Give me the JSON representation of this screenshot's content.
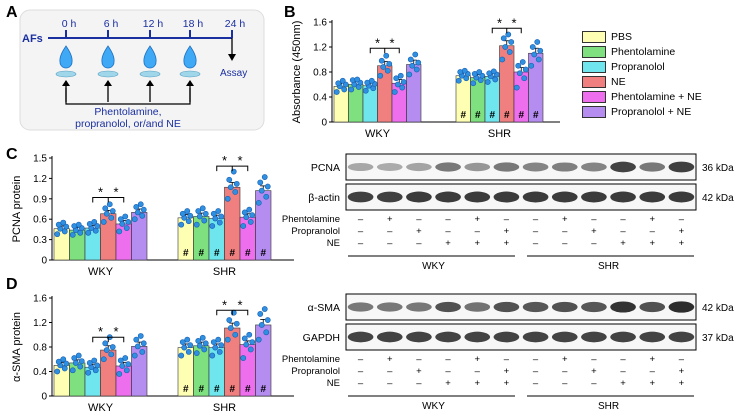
{
  "panels": {
    "a": "A",
    "b": "B",
    "c": "C",
    "d": "D"
  },
  "schematic": {
    "label": "AFs",
    "times": [
      "0 h",
      "6 h",
      "12 h",
      "18 h",
      "24 h"
    ],
    "assay": "Assay",
    "treatment_line1": "Phentolamine,",
    "treatment_line2": "propranolol, or/and NE"
  },
  "colors": {
    "PBS": "#ffffb3",
    "Phentolamine": "#7ee07e",
    "Propranolol": "#6fe6ee",
    "NE": "#f08080",
    "Phentolamine + NE": "#ee6fee",
    "Propranolol + NE": "#b58cf0",
    "dot": "#2f8fe0",
    "dot_stroke": "#1a5fb0"
  },
  "legend": [
    "PBS",
    "Phentolamine",
    "Propranolol",
    "NE",
    "Phentolamine + NE",
    "Propranolol + NE"
  ],
  "chart_data": [
    {
      "id": "B",
      "type": "bar",
      "ylabel": "Absorbance (450nm)",
      "ylim": [
        0,
        1.6
      ],
      "yticks": [
        "0",
        "0.4",
        "0.8",
        "1.2",
        "1.6"
      ],
      "groups": [
        "WKY",
        "SHR"
      ],
      "series": [
        {
          "name": "PBS",
          "values": [
            0.57,
            0.74
          ]
        },
        {
          "name": "Phentolamine",
          "values": [
            0.6,
            0.71
          ]
        },
        {
          "name": "Propranolol",
          "values": [
            0.58,
            0.73
          ]
        },
        {
          "name": "NE",
          "values": [
            0.9,
            1.22
          ]
        },
        {
          "name": "Phentolamine + NE",
          "values": [
            0.62,
            0.8
          ]
        },
        {
          "name": "Propranolol + NE",
          "values": [
            0.92,
            1.1
          ]
        }
      ],
      "errors": [
        [
          0.05,
          0.05
        ],
        [
          0.05,
          0.05
        ],
        [
          0.04,
          0.05
        ],
        [
          0.07,
          0.08
        ],
        [
          0.06,
          0.07
        ],
        [
          0.07,
          0.08
        ]
      ],
      "points": [
        [
          [
            0.48,
            0.52,
            0.57,
            0.6,
            0.62,
            0.66
          ],
          [
            0.66,
            0.7,
            0.74,
            0.77,
            0.8,
            0.82
          ]
        ],
        [
          [
            0.52,
            0.56,
            0.6,
            0.63,
            0.67,
            0.68
          ],
          [
            0.62,
            0.67,
            0.71,
            0.74,
            0.77,
            0.8
          ]
        ],
        [
          [
            0.5,
            0.54,
            0.58,
            0.61,
            0.63,
            0.66
          ],
          [
            0.64,
            0.68,
            0.73,
            0.76,
            0.78,
            0.81
          ]
        ],
        [
          [
            0.74,
            0.82,
            0.88,
            0.93,
            0.98,
            1.06
          ],
          [
            1.0,
            1.12,
            1.2,
            1.28,
            1.34,
            1.4
          ]
        ],
        [
          [
            0.48,
            0.55,
            0.6,
            0.64,
            0.7,
            0.74
          ],
          [
            0.55,
            0.7,
            0.78,
            0.84,
            0.9,
            0.96
          ]
        ],
        [
          [
            0.76,
            0.84,
            0.9,
            0.95,
            1.0,
            1.08
          ],
          [
            0.9,
            1.0,
            1.08,
            1.14,
            1.2,
            1.28
          ]
        ]
      ],
      "hash": [
        [
          false,
          true
        ],
        [
          false,
          true
        ],
        [
          false,
          true
        ],
        [
          false,
          true
        ],
        [
          false,
          true
        ],
        [
          false,
          true
        ]
      ],
      "significance": [
        {
          "group": 0,
          "from": 3,
          "to": 4,
          "label": "* *",
          "y": 1.18
        },
        {
          "group": 1,
          "from": 3,
          "to": 4,
          "label": "* *",
          "y": 1.5
        }
      ],
      "hash_label": "#"
    },
    {
      "id": "C",
      "type": "bar",
      "ylabel": "PCNA protein",
      "ylim": [
        0,
        1.5
      ],
      "yticks": [
        "0",
        "0.3",
        "0.6",
        "0.9",
        "1.2",
        "1.5"
      ],
      "groups": [
        "WKY",
        "SHR"
      ],
      "series": [
        {
          "name": "PBS",
          "values": [
            0.46,
            0.62
          ]
        },
        {
          "name": "Phentolamine",
          "values": [
            0.44,
            0.64
          ]
        },
        {
          "name": "Propranolol",
          "values": [
            0.47,
            0.61
          ]
        },
        {
          "name": "NE",
          "values": [
            0.68,
            1.07
          ]
        },
        {
          "name": "Phentolamine + NE",
          "values": [
            0.53,
            0.63
          ]
        },
        {
          "name": "Propranolol + NE",
          "values": [
            0.7,
            1.02
          ]
        }
      ],
      "errors": [
        [
          0.04,
          0.05
        ],
        [
          0.04,
          0.05
        ],
        [
          0.04,
          0.05
        ],
        [
          0.05,
          0.07
        ],
        [
          0.05,
          0.05
        ],
        [
          0.05,
          0.07
        ]
      ],
      "points": [
        [
          [
            0.38,
            0.42,
            0.46,
            0.49,
            0.52,
            0.55
          ],
          [
            0.52,
            0.57,
            0.62,
            0.65,
            0.68,
            0.72
          ]
        ],
        [
          [
            0.37,
            0.4,
            0.44,
            0.47,
            0.5,
            0.52
          ],
          [
            0.52,
            0.58,
            0.64,
            0.68,
            0.72,
            0.76
          ]
        ],
        [
          [
            0.4,
            0.43,
            0.47,
            0.5,
            0.53,
            0.56
          ],
          [
            0.5,
            0.55,
            0.61,
            0.64,
            0.68,
            0.72
          ]
        ],
        [
          [
            0.56,
            0.62,
            0.68,
            0.72,
            0.76,
            0.82
          ],
          [
            0.9,
            1.0,
            1.07,
            1.12,
            1.18,
            1.3
          ]
        ],
        [
          [
            0.42,
            0.47,
            0.53,
            0.56,
            0.6,
            0.64
          ],
          [
            0.5,
            0.56,
            0.63,
            0.66,
            0.7,
            0.74
          ]
        ],
        [
          [
            0.6,
            0.65,
            0.7,
            0.74,
            0.78,
            0.82
          ],
          [
            0.84,
            0.93,
            1.02,
            1.08,
            1.14,
            1.22
          ]
        ]
      ],
      "hash": [
        [
          false,
          true
        ],
        [
          false,
          true
        ],
        [
          false,
          true
        ],
        [
          false,
          true
        ],
        [
          false,
          true
        ],
        [
          false,
          true
        ]
      ],
      "significance": [
        {
          "group": 0,
          "from": 3,
          "to": 4,
          "label": "* *",
          "y": 0.92
        },
        {
          "group": 1,
          "from": 3,
          "to": 4,
          "label": "* *",
          "y": 1.38
        }
      ],
      "hash_label": "#"
    },
    {
      "id": "D",
      "type": "bar",
      "ylabel": "α-SMA protein",
      "ylim": [
        0,
        1.6
      ],
      "yticks": [
        "0",
        "0.4",
        "0.8",
        "1.2",
        "1.6"
      ],
      "groups": [
        "WKY",
        "SHR"
      ],
      "series": [
        {
          "name": "PBS",
          "values": [
            0.5,
            0.79
          ]
        },
        {
          "name": "Phentolamine",
          "values": [
            0.54,
            0.82
          ]
        },
        {
          "name": "Propranolol",
          "values": [
            0.47,
            0.79
          ]
        },
        {
          "name": "NE",
          "values": [
            0.75,
            1.11
          ]
        },
        {
          "name": "Phentolamine + NE",
          "values": [
            0.49,
            0.84
          ]
        },
        {
          "name": "Propranolol + NE",
          "values": [
            0.81,
            1.16
          ]
        }
      ],
      "errors": [
        [
          0.05,
          0.06
        ],
        [
          0.05,
          0.06
        ],
        [
          0.05,
          0.06
        ],
        [
          0.07,
          0.08
        ],
        [
          0.06,
          0.06
        ],
        [
          0.07,
          0.09
        ]
      ],
      "points": [
        [
          [
            0.4,
            0.45,
            0.5,
            0.53,
            0.56,
            0.6
          ],
          [
            0.66,
            0.72,
            0.79,
            0.83,
            0.88,
            0.92
          ]
        ],
        [
          [
            0.42,
            0.48,
            0.54,
            0.57,
            0.62,
            0.66
          ],
          [
            0.7,
            0.76,
            0.82,
            0.86,
            0.9,
            0.95
          ]
        ],
        [
          [
            0.38,
            0.42,
            0.47,
            0.5,
            0.54,
            0.58
          ],
          [
            0.66,
            0.72,
            0.79,
            0.83,
            0.88,
            0.92
          ]
        ],
        [
          [
            0.6,
            0.68,
            0.75,
            0.8,
            0.86,
            0.96
          ],
          [
            0.92,
            1.0,
            1.11,
            1.18,
            1.24,
            1.36
          ]
        ],
        [
          [
            0.36,
            0.42,
            0.49,
            0.52,
            0.58,
            0.62
          ],
          [
            0.62,
            0.76,
            0.84,
            0.88,
            0.94,
            1.0
          ]
        ],
        [
          [
            0.66,
            0.72,
            0.81,
            0.86,
            0.92,
            0.98
          ],
          [
            0.92,
            1.04,
            1.16,
            1.24,
            1.34,
            1.42
          ]
        ]
      ],
      "hash": [
        [
          false,
          true
        ],
        [
          false,
          true
        ],
        [
          false,
          true
        ],
        [
          false,
          true
        ],
        [
          false,
          true
        ],
        [
          false,
          true
        ]
      ],
      "significance": [
        {
          "group": 0,
          "from": 3,
          "to": 4,
          "label": "* *",
          "y": 0.96
        },
        {
          "group": 1,
          "from": 3,
          "to": 4,
          "label": "* *",
          "y": 1.4
        }
      ],
      "hash_label": "#"
    }
  ],
  "blots": [
    {
      "id": "C",
      "bands": [
        {
          "label": "PCNA",
          "kda": "36 kDa",
          "intensity": [
            0.35,
            0.33,
            0.36,
            0.55,
            0.42,
            0.55,
            0.5,
            0.52,
            0.5,
            0.78,
            0.55,
            0.8
          ]
        },
        {
          "label": "β-actin",
          "kda": "42 kDa",
          "intensity": [
            0.8,
            0.8,
            0.82,
            0.82,
            0.82,
            0.82,
            0.82,
            0.82,
            0.82,
            0.82,
            0.82,
            0.82
          ]
        }
      ],
      "treatments": [
        {
          "label": "Phentolamine",
          "marks": [
            "–",
            "+",
            "–",
            "–",
            "+",
            "–",
            "–",
            "+",
            "–",
            "–",
            "+",
            "–"
          ]
        },
        {
          "label": "Propranolol",
          "marks": [
            "–",
            "–",
            "+",
            "–",
            "–",
            "+",
            "–",
            "–",
            "+",
            "–",
            "–",
            "+"
          ]
        },
        {
          "label": "NE",
          "marks": [
            "–",
            "–",
            "–",
            "+",
            "+",
            "+",
            "–",
            "–",
            "–",
            "+",
            "+",
            "+"
          ]
        }
      ],
      "groups": [
        "WKY",
        "SHR"
      ]
    },
    {
      "id": "D",
      "bands": [
        {
          "label": "α-SMA",
          "kda": "42 kDa",
          "intensity": [
            0.55,
            0.55,
            0.55,
            0.72,
            0.58,
            0.72,
            0.7,
            0.72,
            0.7,
            0.85,
            0.72,
            0.88
          ]
        },
        {
          "label": "GAPDH",
          "kda": "37 kDa",
          "intensity": [
            0.78,
            0.78,
            0.78,
            0.78,
            0.78,
            0.78,
            0.78,
            0.78,
            0.78,
            0.78,
            0.78,
            0.78
          ]
        }
      ],
      "treatments": [
        {
          "label": "Phentolamine",
          "marks": [
            "–",
            "+",
            "–",
            "–",
            "+",
            "–",
            "–",
            "+",
            "–",
            "–",
            "+",
            "–"
          ]
        },
        {
          "label": "Propranolol",
          "marks": [
            "–",
            "–",
            "+",
            "–",
            "–",
            "+",
            "–",
            "–",
            "+",
            "–",
            "–",
            "+"
          ]
        },
        {
          "label": "NE",
          "marks": [
            "–",
            "–",
            "–",
            "+",
            "+",
            "+",
            "–",
            "–",
            "–",
            "+",
            "+",
            "+"
          ]
        }
      ],
      "groups": [
        "WKY",
        "SHR"
      ]
    }
  ]
}
